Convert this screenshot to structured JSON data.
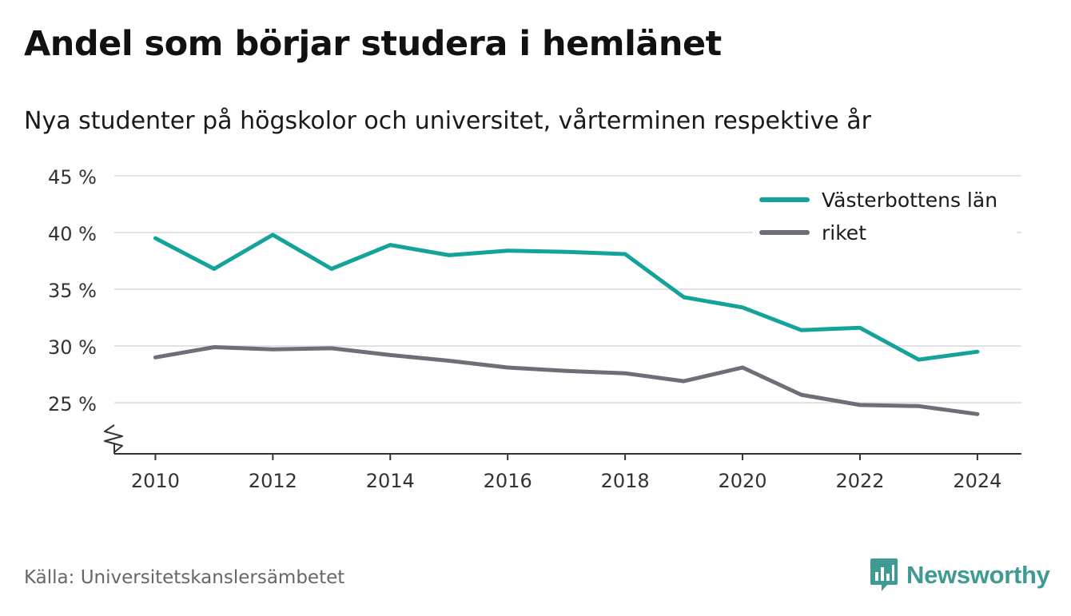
{
  "header": {
    "title": "Andel som börjar studera i hemlänet",
    "subtitle": "Nya studenter på högskolor och universitet, vårterminen respektive år"
  },
  "footer": {
    "source": "Källa: Universitetskanslersämbetet",
    "brand": "Newsworthy"
  },
  "chart_data": {
    "type": "line",
    "title": "Andel som börjar studera i hemlänet",
    "subtitle": "Nya studenter på högskolor och universitet, vårterminen respektive år",
    "x": [
      2010,
      2011,
      2012,
      2013,
      2014,
      2015,
      2016,
      2017,
      2018,
      2019,
      2020,
      2021,
      2022,
      2023,
      2024
    ],
    "x_ticks": [
      2010,
      2012,
      2014,
      2016,
      2018,
      2020,
      2022,
      2024
    ],
    "x_tick_labels": [
      "2010",
      "2012",
      "2014",
      "2016",
      "2018",
      "2020",
      "2022",
      "2024"
    ],
    "y_ticks": [
      25,
      30,
      35,
      40,
      45
    ],
    "y_tick_labels": [
      "25 %",
      "30 %",
      "35 %",
      "40 %",
      "45 %"
    ],
    "xlim": [
      2009.3,
      2024.75
    ],
    "ylim": [
      20.5,
      45
    ],
    "y_axis_break": true,
    "grid": "horizontal",
    "legend_position": "top-right",
    "xlabel": "",
    "ylabel": "",
    "series": [
      {
        "name": "Västerbottens län",
        "color": "#14a39a",
        "values": [
          39.5,
          36.8,
          39.8,
          36.8,
          38.9,
          38.0,
          38.4,
          38.3,
          38.1,
          34.3,
          33.4,
          31.4,
          31.6,
          28.8,
          29.5
        ]
      },
      {
        "name": "riket",
        "color": "#6e6e78",
        "values": [
          29.0,
          29.9,
          29.7,
          29.8,
          29.2,
          28.7,
          28.1,
          27.8,
          27.6,
          26.9,
          28.1,
          25.7,
          24.8,
          24.7,
          24.0
        ]
      }
    ]
  }
}
